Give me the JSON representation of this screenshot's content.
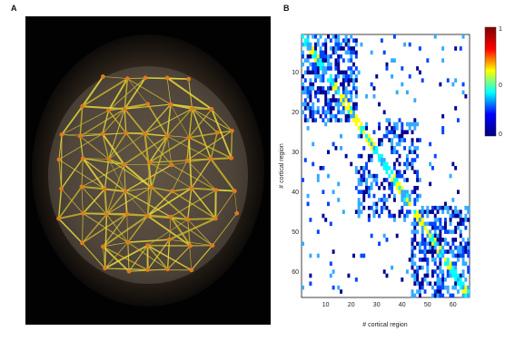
{
  "panels": {
    "a": {
      "label": "A"
    },
    "b": {
      "label": "B"
    }
  },
  "chart_data": {
    "type": "heatmap",
    "title": "",
    "xlabel": "# cortical region",
    "ylabel": "# cortical region",
    "xlim": [
      1,
      66
    ],
    "ylim": [
      1,
      66
    ],
    "xticks": [
      10,
      20,
      30,
      40,
      50,
      60
    ],
    "yticks": [
      10,
      20,
      30,
      40,
      50,
      60
    ],
    "colorbar": {
      "min": 0,
      "max": 1,
      "ticks": [
        "1",
        "0",
        "0"
      ],
      "colormap": "jet"
    },
    "grid": false,
    "blocks": [
      {
        "from": 1,
        "to": 22,
        "density": 0.55
      },
      {
        "from": 22,
        "to": 46,
        "density": 0.4
      },
      {
        "from": 44,
        "to": 66,
        "density": 0.55
      }
    ]
  }
}
